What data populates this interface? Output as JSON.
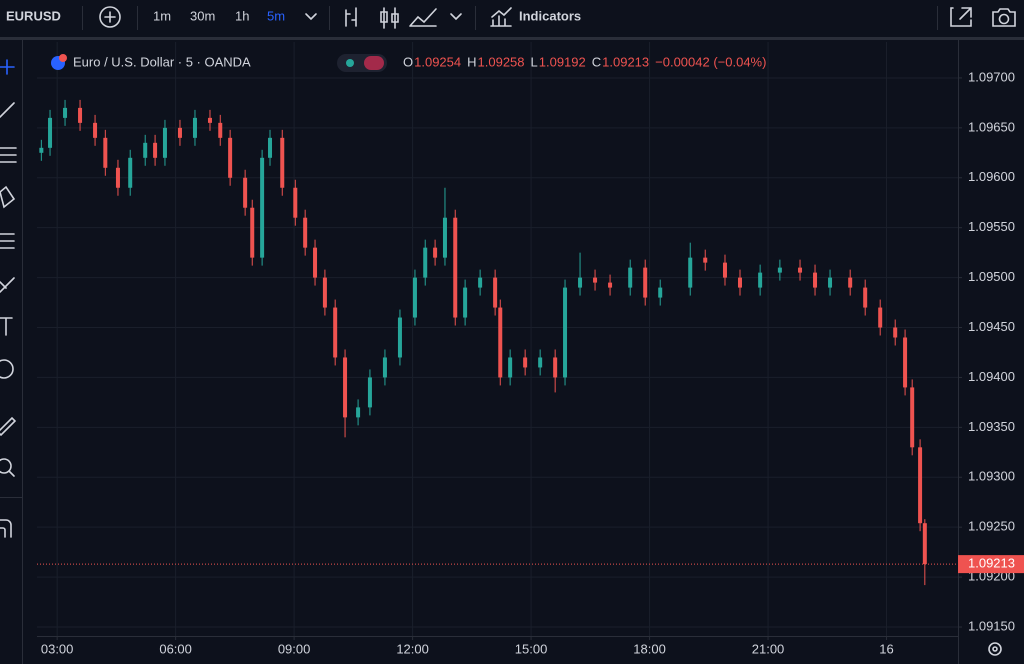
{
  "toolbar": {
    "symbol": "EURUSD",
    "intervals": [
      "1m",
      "30m",
      "1h",
      "5m"
    ],
    "indicators": "Indicators"
  },
  "chart_data": {
    "type": "candlestick",
    "title": "Euro / U.S. Dollar · 5 · OANDA",
    "ohlc_legend": {
      "o_label": "O",
      "o": "1.09254",
      "h_label": "H",
      "h": "1.09258",
      "l_label": "L",
      "l": "1.09192",
      "c_label": "C",
      "c": "1.09213",
      "change": "−0.00042 (−0.04%)"
    },
    "x": [
      2.6,
      2.82,
      3.2,
      3.58,
      3.96,
      4.22,
      4.54,
      4.85,
      5.23,
      5.48,
      5.73,
      6.11,
      6.49,
      6.87,
      7.13,
      7.38,
      7.76,
      7.94,
      8.19,
      8.39,
      8.7,
      9.03,
      9.28,
      9.53,
      9.78,
      10.04,
      10.29,
      10.62,
      10.92,
      11.3,
      11.68,
      12.06,
      12.32,
      12.57,
      12.82,
      13.08,
      13.33,
      13.71,
      14.09,
      14.22,
      14.47,
      14.85,
      15.23,
      15.61,
      15.86,
      16.24,
      16.62,
      17,
      17.51,
      17.89,
      18.27,
      19.03,
      19.41,
      19.91,
      20.29,
      20.8,
      21.3,
      21.81,
      22.19,
      22.57,
      23.08,
      23.46,
      23.84,
      24.22,
      24.47,
      24.65,
      24.85,
      24.97
    ],
    "open": [
      1.09625,
      1.0963,
      1.0966,
      1.0967,
      1.09655,
      1.0964,
      1.0961,
      1.0959,
      1.0962,
      1.09635,
      1.0962,
      1.0965,
      1.0964,
      1.0966,
      1.09655,
      1.0964,
      1.096,
      1.0957,
      1.0952,
      1.0962,
      1.0964,
      1.0959,
      1.0956,
      1.0953,
      1.095,
      1.0947,
      1.0942,
      1.0936,
      1.0937,
      1.094,
      1.0942,
      1.0946,
      1.095,
      1.0953,
      1.0952,
      1.0956,
      1.0946,
      1.0949,
      1.095,
      1.0947,
      1.094,
      1.0942,
      1.0941,
      1.0942,
      1.094,
      1.0949,
      1.095,
      1.09495,
      1.0949,
      1.0951,
      1.0948,
      1.0949,
      1.0952,
      1.09515,
      1.095,
      1.0949,
      1.09505,
      1.0951,
      1.09505,
      1.0949,
      1.095,
      1.0949,
      1.0947,
      1.0945,
      1.0944,
      1.0939,
      1.0933,
      1.09254
    ],
    "high": [
      1.09638,
      1.09668,
      1.09678,
      1.09678,
      1.09663,
      1.09648,
      1.09618,
      1.09628,
      1.09643,
      1.09643,
      1.09658,
      1.09658,
      1.09668,
      1.09668,
      1.09663,
      1.09648,
      1.09608,
      1.09578,
      1.09628,
      1.09648,
      1.09648,
      1.09598,
      1.09568,
      1.09538,
      1.09508,
      1.09478,
      1.09428,
      1.09378,
      1.09408,
      1.09428,
      1.09468,
      1.09508,
      1.09538,
      1.09538,
      1.0959,
      1.09568,
      1.09498,
      1.09508,
      1.09508,
      1.09478,
      1.09428,
      1.09428,
      1.09428,
      1.09428,
      1.09498,
      1.09525,
      1.09508,
      1.09503,
      1.09518,
      1.09518,
      1.09498,
      1.09535,
      1.09528,
      1.09523,
      1.09508,
      1.09513,
      1.09518,
      1.09518,
      1.09513,
      1.09508,
      1.09508,
      1.09498,
      1.09478,
      1.09458,
      1.09448,
      1.09398,
      1.09338,
      1.09258
    ],
    "low": [
      1.09617,
      1.09622,
      1.09652,
      1.09647,
      1.09632,
      1.09602,
      1.09582,
      1.09582,
      1.09612,
      1.09612,
      1.09612,
      1.09632,
      1.09632,
      1.09647,
      1.09632,
      1.09592,
      1.09562,
      1.09512,
      1.09512,
      1.09612,
      1.09582,
      1.09552,
      1.09522,
      1.09492,
      1.09462,
      1.09412,
      1.0934,
      1.09352,
      1.09362,
      1.09392,
      1.09412,
      1.09452,
      1.09492,
      1.09512,
      1.09512,
      1.09452,
      1.09452,
      1.09482,
      1.09462,
      1.09392,
      1.09392,
      1.09402,
      1.09402,
      1.09385,
      1.09392,
      1.09482,
      1.09487,
      1.09482,
      1.09482,
      1.09472,
      1.09472,
      1.09482,
      1.09507,
      1.09492,
      1.09482,
      1.09482,
      1.09497,
      1.09497,
      1.09482,
      1.09482,
      1.09482,
      1.09462,
      1.09442,
      1.09432,
      1.09382,
      1.09322,
      1.09246,
      1.09192
    ],
    "close": [
      1.0963,
      1.0966,
      1.0967,
      1.09655,
      1.0964,
      1.0961,
      1.0959,
      1.0962,
      1.09635,
      1.0962,
      1.0965,
      1.0964,
      1.0966,
      1.09655,
      1.0964,
      1.096,
      1.0957,
      1.0952,
      1.0962,
      1.0964,
      1.0959,
      1.0956,
      1.0953,
      1.095,
      1.0947,
      1.0942,
      1.0936,
      1.0937,
      1.094,
      1.0942,
      1.0946,
      1.095,
      1.0953,
      1.0952,
      1.0956,
      1.0946,
      1.0949,
      1.095,
      1.0947,
      1.094,
      1.0942,
      1.0941,
      1.0942,
      1.094,
      1.0949,
      1.095,
      1.09495,
      1.0949,
      1.0951,
      1.0948,
      1.0949,
      1.0952,
      1.09515,
      1.095,
      1.0949,
      1.09505,
      1.0951,
      1.09505,
      1.0949,
      1.095,
      1.0949,
      1.0947,
      1.0945,
      1.0944,
      1.0939,
      1.0933,
      1.09254,
      1.09213
    ],
    "up_color": "#26a69a",
    "down_color": "#ef5350",
    "xlim": [
      2.49,
      25.81
    ],
    "xticks": [
      {
        "value": 3,
        "label": "03:00"
      },
      {
        "value": 6,
        "label": "06:00"
      },
      {
        "value": 9,
        "label": "09:00"
      },
      {
        "value": 12,
        "label": "12:00"
      },
      {
        "value": 15,
        "label": "15:00"
      },
      {
        "value": 18,
        "label": "18:00"
      },
      {
        "value": 21,
        "label": "21:00"
      },
      {
        "value": 24,
        "label": "16"
      }
    ],
    "ylim": [
      1.09141,
      1.09736
    ],
    "yticks": [
      {
        "value": 1.0915,
        "label": "1.09150"
      },
      {
        "value": 1.092,
        "label": "1.09200"
      },
      {
        "value": 1.0925,
        "label": "1.09250"
      },
      {
        "value": 1.093,
        "label": "1.09300"
      },
      {
        "value": 1.0935,
        "label": "1.09350"
      },
      {
        "value": 1.094,
        "label": "1.09400"
      },
      {
        "value": 1.0945,
        "label": "1.09450"
      },
      {
        "value": 1.095,
        "label": "1.09500"
      },
      {
        "value": 1.0955,
        "label": "1.09550"
      },
      {
        "value": 1.096,
        "label": "1.09600"
      },
      {
        "value": 1.0965,
        "label": "1.09650"
      },
      {
        "value": 1.097,
        "label": "1.09700"
      }
    ],
    "grid": true,
    "last_price": 1.09213
  }
}
